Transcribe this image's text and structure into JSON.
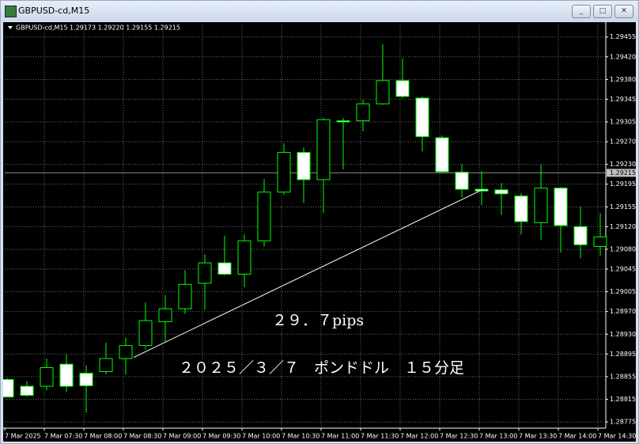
{
  "window": {
    "title": "GBPUSD-cd,M15"
  },
  "chart_data": {
    "type": "candlestick",
    "title": "GBPUSD-cd,M15",
    "header_prices": "1.29173 1.29220 1.29155 1.29215",
    "categories": [
      "7 Mar 2025",
      null,
      "7 Mar 07:30",
      null,
      "7 Mar 08:00",
      null,
      "7 Mar 08:30",
      null,
      "7 Mar 09:00",
      null,
      "7 Mar 09:30",
      null,
      "7 Mar 10:00",
      null,
      "7 Mar 10:30",
      null,
      "7 Mar 11:00",
      null,
      "7 Mar 11:30",
      null,
      "7 Mar 12:00",
      null,
      "7 Mar 12:30",
      null,
      "7 Mar 13:00",
      null,
      "7 Mar 13:30",
      null,
      "7 Mar 14:00",
      null,
      "7 Mar 14:30"
    ],
    "open": [
      1.2885,
      1.28838,
      1.28838,
      1.28877,
      1.28861,
      1.28864,
      1.28887,
      1.2891,
      1.28952,
      1.28975,
      1.2902,
      1.29056,
      1.29036,
      1.29095,
      1.29181,
      1.29251,
      1.29203,
      1.29307,
      1.29307,
      1.29337,
      1.29378,
      1.29347,
      1.29277,
      1.29216,
      1.29186,
      1.29185,
      1.29174,
      1.29127,
      1.29188,
      1.2912,
      1.29085
    ],
    "high": [
      1.28852,
      1.28847,
      1.28887,
      1.28894,
      1.28875,
      1.28915,
      1.28924,
      1.28986,
      1.28999,
      1.29043,
      1.29071,
      1.29104,
      1.29106,
      1.29204,
      1.29267,
      1.2926,
      1.29312,
      1.29312,
      1.29344,
      1.29442,
      1.29417,
      1.2935,
      1.29281,
      1.2923,
      1.29218,
      1.29197,
      1.29179,
      1.2923,
      1.2919,
      1.29155,
      1.29144
    ],
    "low": [
      1.28819,
      1.28819,
      1.28831,
      1.28828,
      1.28791,
      1.28859,
      1.28859,
      1.28903,
      1.28917,
      1.28966,
      1.28973,
      1.29034,
      1.29013,
      1.29085,
      1.29176,
      1.29162,
      1.29144,
      1.29221,
      1.29288,
      1.29335,
      1.29347,
      1.29253,
      1.29214,
      1.29172,
      1.29158,
      1.29141,
      1.29106,
      1.29097,
      1.29074,
      1.29064,
      1.29069
    ],
    "close": [
      1.28819,
      1.28822,
      1.28871,
      1.28838,
      1.28839,
      1.28887,
      1.2891,
      1.28954,
      1.28975,
      1.29018,
      1.29056,
      1.29036,
      1.29095,
      1.29181,
      1.29251,
      1.29203,
      1.29309,
      1.29305,
      1.29337,
      1.29378,
      1.2935,
      1.29279,
      1.29217,
      1.29186,
      1.29183,
      1.29178,
      1.29129,
      1.29188,
      1.29122,
      1.29088,
      1.29102
    ],
    "color": "#00ff00",
    "up_fill": "#000000",
    "down_fill": "#ffffff",
    "ylim": [
      1.28764,
      1.29477
    ],
    "yticks": [
      1.28775,
      1.28815,
      1.28855,
      1.28895,
      {
        "value": 1.2893,
        "label": "1.28930"
      },
      {
        "value": 1.2897,
        "label": "1.28970"
      },
      1.29005,
      1.29045,
      {
        "value": 1.2908,
        "label": "1.29080"
      },
      {
        "value": 1.2912,
        "label": "1.29120"
      },
      1.29155,
      1.29195,
      {
        "value": 1.2923,
        "label": "1.29230"
      },
      {
        "value": 1.2927,
        "label": "1.29270"
      },
      1.29305,
      1.29345,
      {
        "value": 1.2938,
        "label": "1.29380"
      },
      {
        "value": 1.2942,
        "label": "1.29420"
      },
      1.29455
    ],
    "grid": true,
    "last_price": 1.29215,
    "trendline": {
      "x": [
        6.4,
        24.08
      ],
      "y": [
        1.28889,
        1.29186
      ],
      "color": "#ffffff"
    },
    "annotations": [
      "２９．７pips",
      "２０２５／３／７　ポンドドル　１５分足"
    ]
  }
}
